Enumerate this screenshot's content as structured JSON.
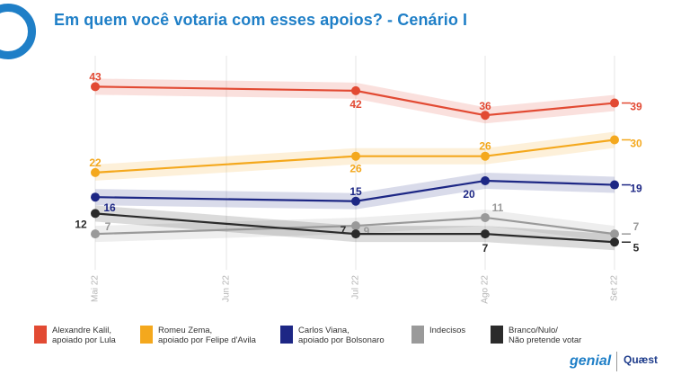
{
  "title": "Em quem você votaria com esses apoios? - Cenário I",
  "brand": {
    "left": "genial",
    "right": "Quæst"
  },
  "colors": {
    "lula": "#e24a33",
    "zema": "#f4a81d",
    "viana": "#1d2785",
    "indecisos": "#9a9a9a",
    "branco": "#2b2b2b"
  },
  "chart_data": {
    "type": "line",
    "title": "Em quem você votaria com esses apoios? - Cenário I",
    "x": [
      "Mai 22",
      "Jun 22",
      "Jul 22",
      "Ago 22",
      "Set 22"
    ],
    "grid": true,
    "legend_position": "bottom",
    "series": [
      {
        "key": "lula",
        "name": "Alexandre Kalil,\napoiado por Lula",
        "color": "#e24a33",
        "points": [
          {
            "x": "Mai 22",
            "y": 43
          },
          {
            "x": "Jul 22",
            "y": 42
          },
          {
            "x": "Ago 22",
            "y": 36
          },
          {
            "x": "Set 22",
            "y": 39
          }
        ]
      },
      {
        "key": "zema",
        "name": "Romeu Zema,\napoiado por Felipe d'Avila",
        "color": "#f4a81d",
        "points": [
          {
            "x": "Mai 22",
            "y": 22
          },
          {
            "x": "Jul 22",
            "y": 26
          },
          {
            "x": "Ago 22",
            "y": 26
          },
          {
            "x": "Set 22",
            "y": 30
          }
        ]
      },
      {
        "key": "viana",
        "name": "Carlos Viana,\napoiado por Bolsonaro",
        "color": "#1d2785",
        "points": [
          {
            "x": "Mai 22",
            "y": 16
          },
          {
            "x": "Jul 22",
            "y": 15
          },
          {
            "x": "Ago 22",
            "y": 20
          },
          {
            "x": "Set 22",
            "y": 19
          }
        ]
      },
      {
        "key": "indecisos",
        "name": "Indecisos",
        "color": "#9a9a9a",
        "points": [
          {
            "x": "Mai 22",
            "y": 7
          },
          {
            "x": "Jul 22",
            "y": 9
          },
          {
            "x": "Ago 22",
            "y": 11
          },
          {
            "x": "Set 22",
            "y": 7
          }
        ]
      },
      {
        "key": "branco",
        "name": "Branco/Nulo/\nNão pretende votar",
        "color": "#2b2b2b",
        "points": [
          {
            "x": "Mai 22",
            "y": 12
          },
          {
            "x": "Jul 22",
            "y": 7
          },
          {
            "x": "Ago 22",
            "y": 7
          },
          {
            "x": "Set 22",
            "y": 5
          }
        ]
      }
    ]
  }
}
